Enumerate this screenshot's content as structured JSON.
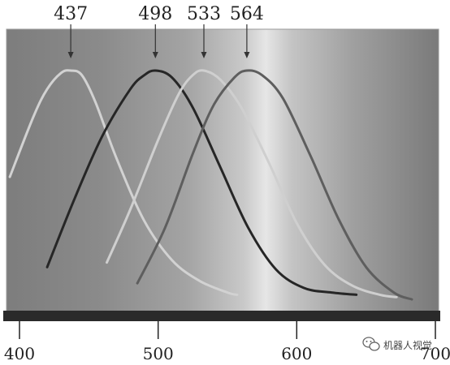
{
  "chart_data": {
    "type": "line",
    "title": "",
    "xlabel": "",
    "ylabel": "",
    "xlim": [
      400,
      700
    ],
    "x_ticks": [
      400,
      500,
      600,
      700
    ],
    "x_tick_labels": [
      "400",
      "500",
      "600",
      "700"
    ],
    "grid": false,
    "legend": "none",
    "series": [
      {
        "peak_label": "437",
        "color": "#d2d2d2",
        "x": [
          393,
          410,
          420,
          430,
          437,
          445,
          455,
          470,
          490,
          510,
          530,
          550,
          557
        ],
        "y": [
          0.54,
          0.8,
          0.92,
          0.99,
          1.0,
          0.98,
          0.86,
          0.62,
          0.35,
          0.18,
          0.09,
          0.04,
          0.03
        ]
      },
      {
        "peak_label": "498",
        "color": "#262626",
        "x": [
          420,
          440,
          460,
          480,
          490,
          498,
          510,
          525,
          545,
          565,
          585,
          605,
          625,
          643
        ],
        "y": [
          0.15,
          0.45,
          0.72,
          0.92,
          0.98,
          1.0,
          0.97,
          0.84,
          0.58,
          0.32,
          0.14,
          0.06,
          0.04,
          0.03
        ]
      },
      {
        "peak_label": "533",
        "color": "#cfcfcf",
        "x": [
          463,
          480,
          500,
          515,
          525,
          533,
          545,
          560,
          580,
          600,
          620,
          640,
          660,
          672
        ],
        "y": [
          0.17,
          0.4,
          0.7,
          0.9,
          0.98,
          1.0,
          0.96,
          0.84,
          0.6,
          0.34,
          0.16,
          0.07,
          0.03,
          0.02
        ]
      },
      {
        "peak_label": "564",
        "color": "#5e5e5e",
        "x": [
          485,
          505,
          525,
          540,
          555,
          564,
          575,
          590,
          610,
          630,
          650,
          670,
          683
        ],
        "y": [
          0.08,
          0.32,
          0.64,
          0.85,
          0.97,
          1.0,
          0.98,
          0.88,
          0.63,
          0.36,
          0.15,
          0.04,
          0.01
        ]
      }
    ]
  },
  "watermark": {
    "text": "机器人视觉",
    "icon": "wechat-icon"
  },
  "colors": {
    "axis_bar": "#2a2a2a",
    "background_edge": "#7a7a7a",
    "background_highlight": "#e2e2e2"
  }
}
